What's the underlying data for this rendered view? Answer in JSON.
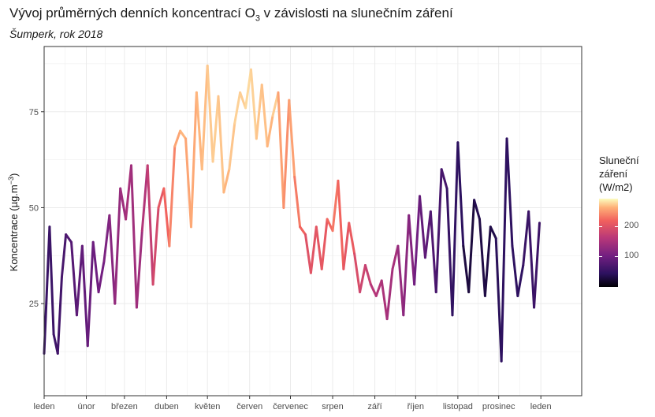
{
  "title_main": "Vývoj průměrných denních koncentrací O",
  "title_sub": "3",
  "title_rest": " v závislosti na slunečním záření",
  "subtitle": "Šumperk, rok 2018",
  "legend": {
    "title_lines": [
      "Sluneční",
      "záření",
      "(W/m2)"
    ],
    "ticks": [
      {
        "value": 200,
        "label": "200"
      },
      {
        "value": 100,
        "label": "100"
      }
    ],
    "range": [
      0,
      290
    ]
  },
  "colors": {
    "scale": [
      "#000004",
      "#2c115f",
      "#721f81",
      "#b73779",
      "#f1605d",
      "#feb078",
      "#fcfdbf"
    ],
    "grid": "#ebebeb",
    "panel_border": "#333333"
  },
  "chart_data": {
    "type": "line",
    "title": "Vývoj průměrných denních koncentrací O3 v závislosti na slunečním záření",
    "subtitle": "Šumperk, rok 2018",
    "xlabel": "",
    "ylabel": "Koncentrace (µg.m⁻³)",
    "ylim": [
      1,
      92
    ],
    "xlim": [
      0,
      395
    ],
    "y_ticks": [
      25,
      50,
      75
    ],
    "x_ticks": [
      {
        "day": 0,
        "label": "leden"
      },
      {
        "day": 31,
        "label": "únor"
      },
      {
        "day": 59,
        "label": "březen"
      },
      {
        "day": 90,
        "label": "duben"
      },
      {
        "day": 120,
        "label": "květen"
      },
      {
        "day": 151,
        "label": "červen"
      },
      {
        "day": 181,
        "label": "červenec"
      },
      {
        "day": 212,
        "label": "srpen"
      },
      {
        "day": 243,
        "label": "září"
      },
      {
        "day": 273,
        "label": "říjen"
      },
      {
        "day": 304,
        "label": "listopad"
      },
      {
        "day": 334,
        "label": "prosinec"
      },
      {
        "day": 365,
        "label": "leden"
      }
    ],
    "grid": true,
    "legend_position": "right",
    "color_variable": "Sluneční záření (W/m2)",
    "series_anchors": {
      "days": [
        0,
        4,
        7,
        10,
        13,
        16,
        20,
        24,
        28,
        32,
        36,
        40,
        44,
        48,
        52,
        56,
        60,
        64,
        68,
        72,
        76,
        80,
        84,
        88,
        92,
        96,
        100,
        104,
        108,
        112,
        116,
        120,
        124,
        128,
        132,
        136,
        140,
        144,
        148,
        152,
        156,
        160,
        164,
        168,
        172,
        176,
        180,
        184,
        188,
        192,
        196,
        200,
        204,
        208,
        212,
        216,
        220,
        224,
        228,
        232,
        236,
        240,
        244,
        248,
        252,
        256,
        260,
        264,
        268,
        272,
        276,
        280,
        284,
        288,
        292,
        296,
        300,
        304,
        308,
        312,
        316,
        320,
        324,
        328,
        332,
        336,
        340,
        344,
        348,
        352,
        356,
        360,
        364
      ],
      "ozone": [
        12,
        45,
        17,
        12,
        32,
        43,
        41,
        22,
        40,
        14,
        41,
        28,
        36,
        48,
        25,
        55,
        47,
        61,
        24,
        44,
        61,
        30,
        50,
        55,
        40,
        66,
        70,
        68,
        45,
        80,
        60,
        87,
        62,
        79,
        54,
        60,
        72,
        80,
        76,
        86,
        68,
        82,
        66,
        74,
        80,
        50,
        78,
        58,
        45,
        43,
        33,
        45,
        34,
        47,
        44,
        57,
        34,
        46,
        38,
        28,
        35,
        30,
        27,
        31,
        21,
        34,
        40,
        22,
        48,
        30,
        53,
        37,
        49,
        28,
        60,
        55,
        22,
        67,
        40,
        28,
        52,
        47,
        27,
        45,
        42,
        10,
        68,
        40,
        27,
        35,
        49,
        24,
        46
      ],
      "radiation": [
        55,
        58,
        60,
        62,
        65,
        70,
        75,
        80,
        85,
        88,
        92,
        95,
        100,
        108,
        115,
        125,
        130,
        138,
        120,
        135,
        150,
        160,
        175,
        190,
        200,
        230,
        240,
        250,
        220,
        255,
        235,
        265,
        250,
        270,
        240,
        250,
        260,
        265,
        255,
        280,
        245,
        265,
        240,
        250,
        270,
        195,
        250,
        215,
        205,
        185,
        170,
        190,
        175,
        195,
        200,
        215,
        175,
        190,
        185,
        160,
        165,
        150,
        140,
        145,
        128,
        135,
        132,
        110,
        118,
        100,
        92,
        80,
        85,
        62,
        72,
        60,
        50,
        52,
        45,
        20,
        42,
        40,
        30,
        38,
        35,
        55,
        45,
        55,
        45,
        55,
        60,
        58,
        62
      ]
    }
  }
}
